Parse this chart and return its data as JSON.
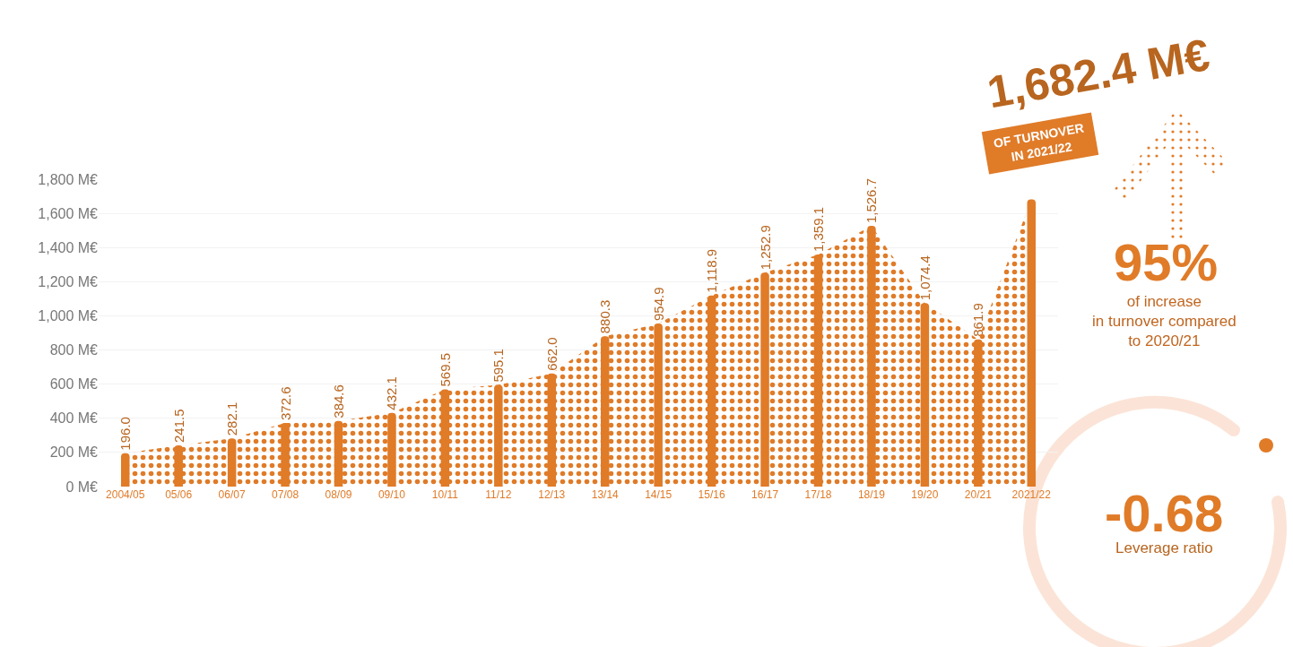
{
  "chart_data": {
    "type": "bar",
    "categories": [
      "2004/05",
      "05/06",
      "06/07",
      "07/08",
      "08/09",
      "09/10",
      "10/11",
      "11/12",
      "12/13",
      "13/14",
      "14/15",
      "15/16",
      "16/17",
      "17/18",
      "18/19",
      "19/20",
      "20/21",
      "2021/22"
    ],
    "series": [
      {
        "type": "area",
        "color": "#e07b28",
        "values": [
          196.0,
          241.5,
          282.1,
          372.6,
          384.6,
          432.1,
          569.5,
          595.1,
          662.0,
          880.3,
          954.9,
          1118.9,
          1252.9,
          1359.1,
          1526.7,
          1074.4,
          861.9,
          1682.4
        ]
      },
      {
        "color": "#e07b28",
        "values": [
          196.0,
          241.5,
          282.1,
          372.6,
          384.6,
          432.1,
          569.5,
          595.1,
          662.0,
          880.3,
          954.9,
          1118.9,
          1252.9,
          1359.1,
          1526.7,
          1074.4,
          861.9,
          1682.4
        ],
        "value_labels": [
          "196.0",
          "241.5",
          "282.1",
          "372.6",
          "384.6",
          "432.1",
          "569.5",
          "595.1",
          "662.0",
          "880.3",
          "954.9",
          "1,118.9",
          "1,252.9",
          "1,359.1",
          "1,526.7",
          "1,074.4",
          "861.9",
          null
        ]
      }
    ],
    "ylim": [
      0,
      1800
    ],
    "yticks": [
      {
        "value": 0,
        "label": "0 M€"
      },
      {
        "value": 200,
        "label": "200 M€"
      },
      {
        "value": 400,
        "label": "400 M€"
      },
      {
        "value": 600,
        "label": "600 M€"
      },
      {
        "value": 800,
        "label": "800 M€"
      },
      {
        "value": 1000,
        "label": "1,000 M€"
      },
      {
        "value": 1200,
        "label": "1,200 M€"
      },
      {
        "value": 1400,
        "label": "1,400 M€"
      },
      {
        "value": 1600,
        "label": "1,600 M€"
      },
      {
        "value": 1800,
        "label": "1,800 M€"
      }
    ],
    "grid": "y",
    "annotations": [
      {
        "text": "1,682.4 M€",
        "x": "2021/22",
        "y": 1682.4
      },
      "OF TURNOVER\nIN 2021/22",
      "95%",
      "of increase\nin turnover compared\nto 2020/21",
      "-0.68",
      "Leverage ratio"
    ]
  }
}
